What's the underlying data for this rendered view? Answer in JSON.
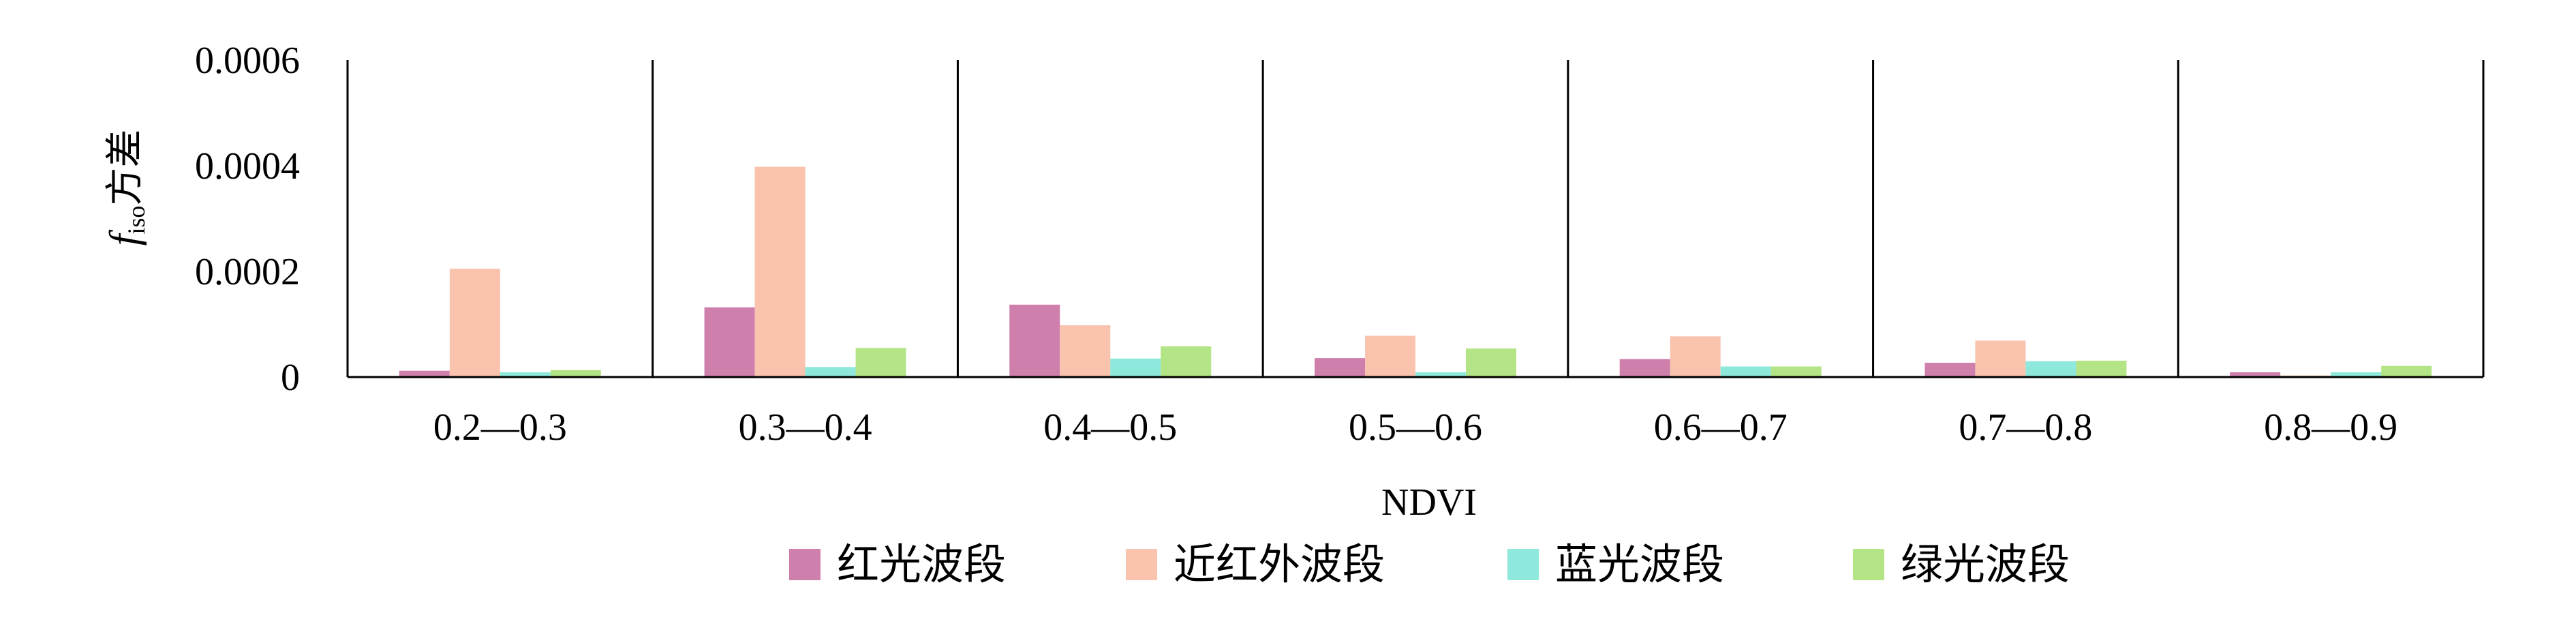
{
  "chart_data": {
    "type": "bar",
    "title": "",
    "xlabel": "NDVI",
    "ylabel": {
      "symbol": "f",
      "subscript": "iso",
      "text": "方差"
    },
    "ylim": [
      0,
      0.0006
    ],
    "yticks": [
      "0",
      "0.0002",
      "0.0004",
      "0.0006"
    ],
    "yticks_values": [
      0,
      0.0002,
      0.0004,
      0.0006
    ],
    "grid": false,
    "legend_position": "bottom",
    "categories": [
      "0.2—0.3",
      "0.3—0.4",
      "0.4—0.5",
      "0.5—0.6",
      "0.6—0.7",
      "0.7—0.8",
      "0.8—0.9"
    ],
    "series": [
      {
        "name": "红光波段",
        "color": "#cf7fab",
        "values": [
          1.2e-05,
          0.000132,
          0.000137,
          3.6e-05,
          3.4e-05,
          2.7e-05,
          9e-06
        ]
      },
      {
        "name": "近红外波段",
        "color": "#f9c3ae",
        "values": [
          0.000205,
          0.000398,
          9.8e-05,
          7.8e-05,
          7.7e-05,
          6.9e-05,
          3e-06
        ]
      },
      {
        "name": "蓝光波段",
        "color": "#8ee8dc",
        "values": [
          9e-06,
          1.9e-05,
          3.5e-05,
          9e-06,
          2e-05,
          3e-05,
          9e-06
        ]
      },
      {
        "name": "绿光波段",
        "color": "#b3e485",
        "values": [
          1.3e-05,
          5.5e-05,
          5.8e-05,
          5.4e-05,
          2e-05,
          3.1e-05,
          2.1e-05
        ]
      }
    ]
  }
}
